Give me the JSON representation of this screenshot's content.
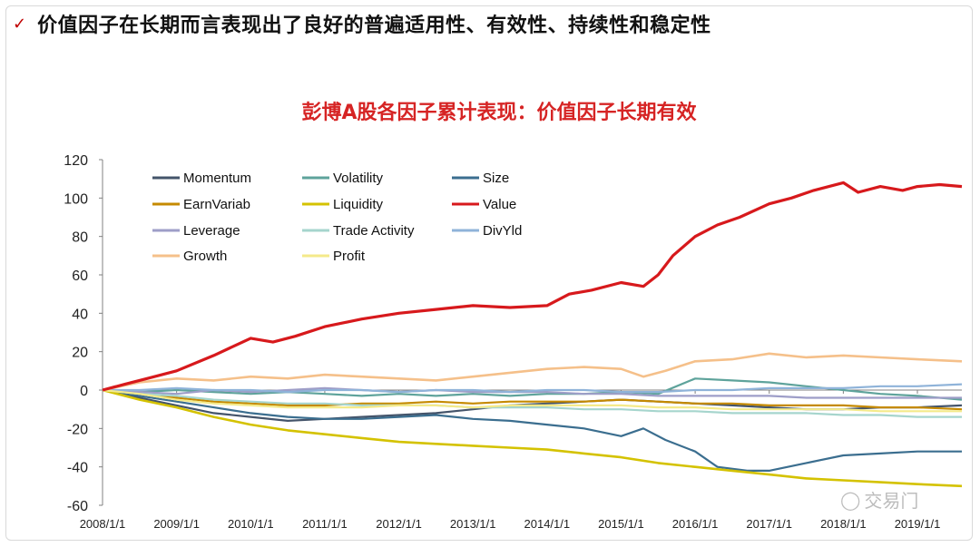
{
  "header": {
    "check_icon": "✓",
    "headline": "价值因子在长期而言表现出了良好的普遍适用性、有效性、持续性和稳定性"
  },
  "watermark": {
    "icon": "wechat-icon",
    "text": "交易门"
  },
  "chart_data": {
    "type": "line",
    "title": "彭博A股各因子累计表现：价值因子长期有效",
    "xlabel": "",
    "ylabel": "",
    "ylim": [
      -60,
      120
    ],
    "yticks": [
      120,
      100,
      80,
      60,
      40,
      20,
      0,
      -20,
      -40,
      -60
    ],
    "x_labels": [
      "2008/1/1",
      "2009/1/1",
      "2010/1/1",
      "2011/1/1",
      "2012/1/1",
      "2013/1/1",
      "2014/1/1",
      "2015/1/1",
      "2016/1/1",
      "2017/1/1",
      "2018/1/1",
      "2019/1/1"
    ],
    "x_range": [
      2008.0,
      2019.6
    ],
    "grid": false,
    "legend_position": "top-left",
    "series": [
      {
        "name": "Momentum",
        "color": "#44546a",
        "points": [
          [
            2008.0,
            0
          ],
          [
            2008.5,
            -4
          ],
          [
            2009.0,
            -8
          ],
          [
            2009.5,
            -12
          ],
          [
            2010.0,
            -14
          ],
          [
            2010.5,
            -16
          ],
          [
            2011.0,
            -15
          ],
          [
            2011.5,
            -14
          ],
          [
            2012.0,
            -13
          ],
          [
            2012.5,
            -12
          ],
          [
            2013.0,
            -10
          ],
          [
            2013.5,
            -8
          ],
          [
            2014.0,
            -7
          ],
          [
            2014.5,
            -6
          ],
          [
            2015.0,
            -5
          ],
          [
            2015.5,
            -6
          ],
          [
            2016.0,
            -7
          ],
          [
            2016.5,
            -8
          ],
          [
            2017.0,
            -9
          ],
          [
            2017.5,
            -10
          ],
          [
            2018.0,
            -10
          ],
          [
            2018.5,
            -9
          ],
          [
            2019.0,
            -9
          ],
          [
            2019.6,
            -8
          ]
        ]
      },
      {
        "name": "Volatility",
        "color": "#5ea39b",
        "points": [
          [
            2008.0,
            0
          ],
          [
            2008.5,
            -1
          ],
          [
            2009.0,
            0
          ],
          [
            2009.5,
            -1
          ],
          [
            2010.0,
            -2
          ],
          [
            2010.5,
            -1
          ],
          [
            2011.0,
            -2
          ],
          [
            2011.5,
            -3
          ],
          [
            2012.0,
            -2
          ],
          [
            2012.5,
            -3
          ],
          [
            2013.0,
            -2
          ],
          [
            2013.5,
            -3
          ],
          [
            2014.0,
            -2
          ],
          [
            2014.5,
            -2
          ],
          [
            2015.0,
            -1
          ],
          [
            2015.5,
            -2
          ],
          [
            2016.0,
            6
          ],
          [
            2016.5,
            5
          ],
          [
            2017.0,
            4
          ],
          [
            2017.5,
            2
          ],
          [
            2018.0,
            0
          ],
          [
            2018.5,
            -2
          ],
          [
            2019.0,
            -3
          ],
          [
            2019.6,
            -5
          ]
        ]
      },
      {
        "name": "Size",
        "color": "#3b6e8f",
        "points": [
          [
            2008.0,
            0
          ],
          [
            2008.5,
            -3
          ],
          [
            2009.0,
            -6
          ],
          [
            2009.5,
            -9
          ],
          [
            2010.0,
            -12
          ],
          [
            2010.5,
            -14
          ],
          [
            2011.0,
            -15
          ],
          [
            2011.5,
            -15
          ],
          [
            2012.0,
            -14
          ],
          [
            2012.5,
            -13
          ],
          [
            2013.0,
            -15
          ],
          [
            2013.5,
            -16
          ],
          [
            2014.0,
            -18
          ],
          [
            2014.5,
            -20
          ],
          [
            2015.0,
            -24
          ],
          [
            2015.3,
            -20
          ],
          [
            2015.6,
            -26
          ],
          [
            2016.0,
            -32
          ],
          [
            2016.3,
            -40
          ],
          [
            2016.7,
            -42
          ],
          [
            2017.0,
            -42
          ],
          [
            2017.5,
            -38
          ],
          [
            2018.0,
            -34
          ],
          [
            2018.5,
            -33
          ],
          [
            2019.0,
            -32
          ],
          [
            2019.6,
            -32
          ]
        ]
      },
      {
        "name": "EarnVariab",
        "color": "#c58a00",
        "points": [
          [
            2008.0,
            0
          ],
          [
            2008.5,
            -2
          ],
          [
            2009.0,
            -4
          ],
          [
            2009.5,
            -6
          ],
          [
            2010.0,
            -7
          ],
          [
            2010.5,
            -8
          ],
          [
            2011.0,
            -8
          ],
          [
            2011.5,
            -7
          ],
          [
            2012.0,
            -7
          ],
          [
            2012.5,
            -6
          ],
          [
            2013.0,
            -7
          ],
          [
            2013.5,
            -6
          ],
          [
            2014.0,
            -6
          ],
          [
            2014.5,
            -6
          ],
          [
            2015.0,
            -5
          ],
          [
            2015.5,
            -6
          ],
          [
            2016.0,
            -7
          ],
          [
            2016.5,
            -7
          ],
          [
            2017.0,
            -8
          ],
          [
            2017.5,
            -8
          ],
          [
            2018.0,
            -8
          ],
          [
            2018.5,
            -9
          ],
          [
            2019.0,
            -9
          ],
          [
            2019.6,
            -10
          ]
        ]
      },
      {
        "name": "Liquidity",
        "color": "#d4c200",
        "points": [
          [
            2008.0,
            0
          ],
          [
            2008.5,
            -5
          ],
          [
            2009.0,
            -9
          ],
          [
            2009.5,
            -14
          ],
          [
            2010.0,
            -18
          ],
          [
            2010.5,
            -21
          ],
          [
            2011.0,
            -23
          ],
          [
            2011.5,
            -25
          ],
          [
            2012.0,
            -27
          ],
          [
            2012.5,
            -28
          ],
          [
            2013.0,
            -29
          ],
          [
            2013.5,
            -30
          ],
          [
            2014.0,
            -31
          ],
          [
            2014.5,
            -33
          ],
          [
            2015.0,
            -35
          ],
          [
            2015.5,
            -38
          ],
          [
            2016.0,
            -40
          ],
          [
            2016.5,
            -42
          ],
          [
            2017.0,
            -44
          ],
          [
            2017.5,
            -46
          ],
          [
            2018.0,
            -47
          ],
          [
            2018.5,
            -48
          ],
          [
            2019.0,
            -49
          ],
          [
            2019.6,
            -50
          ]
        ]
      },
      {
        "name": "Value",
        "color": "#d7191c",
        "points": [
          [
            2008.0,
            0
          ],
          [
            2008.3,
            3
          ],
          [
            2008.6,
            6
          ],
          [
            2009.0,
            10
          ],
          [
            2009.5,
            18
          ],
          [
            2010.0,
            27
          ],
          [
            2010.3,
            25
          ],
          [
            2010.6,
            28
          ],
          [
            2011.0,
            33
          ],
          [
            2011.5,
            37
          ],
          [
            2012.0,
            40
          ],
          [
            2012.5,
            42
          ],
          [
            2013.0,
            44
          ],
          [
            2013.5,
            43
          ],
          [
            2014.0,
            44
          ],
          [
            2014.3,
            50
          ],
          [
            2014.6,
            52
          ],
          [
            2015.0,
            56
          ],
          [
            2015.3,
            54
          ],
          [
            2015.5,
            60
          ],
          [
            2015.7,
            70
          ],
          [
            2016.0,
            80
          ],
          [
            2016.3,
            86
          ],
          [
            2016.6,
            90
          ],
          [
            2017.0,
            97
          ],
          [
            2017.3,
            100
          ],
          [
            2017.6,
            104
          ],
          [
            2018.0,
            108
          ],
          [
            2018.2,
            103
          ],
          [
            2018.5,
            106
          ],
          [
            2018.8,
            104
          ],
          [
            2019.0,
            106
          ],
          [
            2019.3,
            107
          ],
          [
            2019.6,
            106
          ]
        ]
      },
      {
        "name": "Leverage",
        "color": "#9e9ec8",
        "points": [
          [
            2008.0,
            0
          ],
          [
            2008.5,
            -1
          ],
          [
            2009.0,
            -2
          ],
          [
            2009.5,
            0
          ],
          [
            2010.0,
            -1
          ],
          [
            2010.5,
            0
          ],
          [
            2011.0,
            1
          ],
          [
            2011.5,
            0
          ],
          [
            2012.0,
            -1
          ],
          [
            2012.5,
            0
          ],
          [
            2013.0,
            -1
          ],
          [
            2013.5,
            -1
          ],
          [
            2014.0,
            -1
          ],
          [
            2014.5,
            -2
          ],
          [
            2015.0,
            -2
          ],
          [
            2015.5,
            -3
          ],
          [
            2016.0,
            -3
          ],
          [
            2016.5,
            -3
          ],
          [
            2017.0,
            -3
          ],
          [
            2017.5,
            -4
          ],
          [
            2018.0,
            -4
          ],
          [
            2018.5,
            -4
          ],
          [
            2019.0,
            -4
          ],
          [
            2019.6,
            -4
          ]
        ]
      },
      {
        "name": "Trade Activity",
        "color": "#a6d5cd",
        "points": [
          [
            2008.0,
            0
          ],
          [
            2008.5,
            -2
          ],
          [
            2009.0,
            -3
          ],
          [
            2009.5,
            -5
          ],
          [
            2010.0,
            -6
          ],
          [
            2010.5,
            -7
          ],
          [
            2011.0,
            -7
          ],
          [
            2011.5,
            -8
          ],
          [
            2012.0,
            -8
          ],
          [
            2012.5,
            -8
          ],
          [
            2013.0,
            -9
          ],
          [
            2013.5,
            -9
          ],
          [
            2014.0,
            -9
          ],
          [
            2014.5,
            -10
          ],
          [
            2015.0,
            -10
          ],
          [
            2015.5,
            -11
          ],
          [
            2016.0,
            -11
          ],
          [
            2016.5,
            -12
          ],
          [
            2017.0,
            -12
          ],
          [
            2017.5,
            -12
          ],
          [
            2018.0,
            -13
          ],
          [
            2018.5,
            -13
          ],
          [
            2019.0,
            -14
          ],
          [
            2019.6,
            -14
          ]
        ]
      },
      {
        "name": "DivYld",
        "color": "#8fb3d9",
        "points": [
          [
            2008.0,
            0
          ],
          [
            2008.5,
            0
          ],
          [
            2009.0,
            1
          ],
          [
            2009.5,
            0
          ],
          [
            2010.0,
            0
          ],
          [
            2010.5,
            -1
          ],
          [
            2011.0,
            0
          ],
          [
            2011.5,
            0
          ],
          [
            2012.0,
            -1
          ],
          [
            2012.5,
            0
          ],
          [
            2013.0,
            0
          ],
          [
            2013.5,
            -1
          ],
          [
            2014.0,
            0
          ],
          [
            2014.5,
            0
          ],
          [
            2015.0,
            -1
          ],
          [
            2015.5,
            -1
          ],
          [
            2016.0,
            0
          ],
          [
            2016.5,
            0
          ],
          [
            2017.0,
            1
          ],
          [
            2017.5,
            1
          ],
          [
            2018.0,
            1
          ],
          [
            2018.5,
            2
          ],
          [
            2019.0,
            2
          ],
          [
            2019.6,
            3
          ]
        ]
      },
      {
        "name": "Growth",
        "color": "#f5c08a",
        "points": [
          [
            2008.0,
            0
          ],
          [
            2008.5,
            4
          ],
          [
            2009.0,
            6
          ],
          [
            2009.5,
            5
          ],
          [
            2010.0,
            7
          ],
          [
            2010.5,
            6
          ],
          [
            2011.0,
            8
          ],
          [
            2011.5,
            7
          ],
          [
            2012.0,
            6
          ],
          [
            2012.5,
            5
          ],
          [
            2013.0,
            7
          ],
          [
            2013.5,
            9
          ],
          [
            2014.0,
            11
          ],
          [
            2014.5,
            12
          ],
          [
            2015.0,
            11
          ],
          [
            2015.3,
            7
          ],
          [
            2015.6,
            10
          ],
          [
            2016.0,
            15
          ],
          [
            2016.5,
            16
          ],
          [
            2017.0,
            19
          ],
          [
            2017.5,
            17
          ],
          [
            2018.0,
            18
          ],
          [
            2018.5,
            17
          ],
          [
            2019.0,
            16
          ],
          [
            2019.6,
            15
          ]
        ]
      },
      {
        "name": "Profit",
        "color": "#f4ea8a",
        "points": [
          [
            2008.0,
            0
          ],
          [
            2008.5,
            -2
          ],
          [
            2009.0,
            -5
          ],
          [
            2009.5,
            -7
          ],
          [
            2010.0,
            -8
          ],
          [
            2010.5,
            -9
          ],
          [
            2011.0,
            -9
          ],
          [
            2011.5,
            -9
          ],
          [
            2012.0,
            -8
          ],
          [
            2012.5,
            -8
          ],
          [
            2013.0,
            -9
          ],
          [
            2013.5,
            -8
          ],
          [
            2014.0,
            -8
          ],
          [
            2014.5,
            -8
          ],
          [
            2015.0,
            -8
          ],
          [
            2015.5,
            -9
          ],
          [
            2016.0,
            -9
          ],
          [
            2016.5,
            -10
          ],
          [
            2017.0,
            -10
          ],
          [
            2017.5,
            -10
          ],
          [
            2018.0,
            -10
          ],
          [
            2018.5,
            -11
          ],
          [
            2019.0,
            -11
          ],
          [
            2019.6,
            -11
          ]
        ]
      }
    ]
  }
}
